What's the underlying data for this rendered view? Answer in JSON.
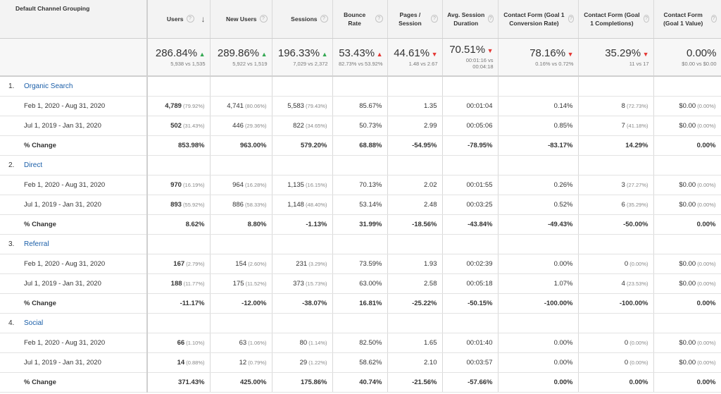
{
  "header": {
    "dimension": "Default Channel Grouping",
    "columns": [
      {
        "label": "Users",
        "sorted": true
      },
      {
        "label": "New Users"
      },
      {
        "label": "Sessions"
      },
      {
        "label": "Bounce Rate"
      },
      {
        "label": "Pages / Session"
      },
      {
        "label": "Avg. Session Duration"
      },
      {
        "label": "Contact Form (Goal 1 Conversion Rate)"
      },
      {
        "label": "Contact Form (Goal 1 Completions)"
      },
      {
        "label": "Contact Form (Goal 1 Value)"
      }
    ],
    "help_glyph": "?",
    "sort_glyph": "↓"
  },
  "totals": [
    {
      "value": "286.84%",
      "trend": "up",
      "sub": "5,938 vs 1,535"
    },
    {
      "value": "289.86%",
      "trend": "up",
      "sub": "5,922 vs 1,519"
    },
    {
      "value": "196.33%",
      "trend": "up",
      "sub": "7,029 vs 2,372"
    },
    {
      "value": "53.43%",
      "trend": "up-bad",
      "sub": "82.73% vs 53.92%"
    },
    {
      "value": "44.61%",
      "trend": "down",
      "sub": "1.48 vs 2.67"
    },
    {
      "value": "70.51%",
      "trend": "down",
      "sub": "00:01:16 vs 00:04:18"
    },
    {
      "value": "78.16%",
      "trend": "down",
      "sub": "0.16% vs 0.72%"
    },
    {
      "value": "35.29%",
      "trend": "down",
      "sub": "11 vs 17"
    },
    {
      "value": "0.00%",
      "trend": "none",
      "sub": "$0.00 vs $0.00"
    }
  ],
  "groups": [
    {
      "num": "1.",
      "name": "Organic Search",
      "rows": [
        {
          "label": "Feb 1, 2020 - Aug 31, 2020",
          "cells": [
            [
              "4,789",
              "(79.92%)"
            ],
            [
              "4,741",
              "(80.06%)"
            ],
            [
              "5,583",
              "(79.43%)"
            ],
            [
              "85.67%",
              ""
            ],
            [
              "1.35",
              ""
            ],
            [
              "00:01:04",
              ""
            ],
            [
              "0.14%",
              ""
            ],
            [
              "8",
              "(72.73%)"
            ],
            [
              "$0.00",
              "(0.00%)"
            ]
          ]
        },
        {
          "label": "Jul 1, 2019 - Jan 31, 2020",
          "cells": [
            [
              "502",
              "(31.43%)"
            ],
            [
              "446",
              "(29.36%)"
            ],
            [
              "822",
              "(34.65%)"
            ],
            [
              "50.73%",
              ""
            ],
            [
              "2.99",
              ""
            ],
            [
              "00:05:06",
              ""
            ],
            [
              "0.85%",
              ""
            ],
            [
              "7",
              "(41.18%)"
            ],
            [
              "$0.00",
              "(0.00%)"
            ]
          ]
        },
        {
          "label": "% Change",
          "change": true,
          "cells": [
            [
              "853.98%",
              ""
            ],
            [
              "963.00%",
              ""
            ],
            [
              "579.20%",
              ""
            ],
            [
              "68.88%",
              ""
            ],
            [
              "-54.95%",
              ""
            ],
            [
              "-78.95%",
              ""
            ],
            [
              "-83.17%",
              ""
            ],
            [
              "14.29%",
              ""
            ],
            [
              "0.00%",
              ""
            ]
          ]
        }
      ]
    },
    {
      "num": "2.",
      "name": "Direct",
      "rows": [
        {
          "label": "Feb 1, 2020 - Aug 31, 2020",
          "cells": [
            [
              "970",
              "(16.19%)"
            ],
            [
              "964",
              "(16.28%)"
            ],
            [
              "1,135",
              "(16.15%)"
            ],
            [
              "70.13%",
              ""
            ],
            [
              "2.02",
              ""
            ],
            [
              "00:01:55",
              ""
            ],
            [
              "0.26%",
              ""
            ],
            [
              "3",
              "(27.27%)"
            ],
            [
              "$0.00",
              "(0.00%)"
            ]
          ]
        },
        {
          "label": "Jul 1, 2019 - Jan 31, 2020",
          "cells": [
            [
              "893",
              "(55.92%)"
            ],
            [
              "886",
              "(58.33%)"
            ],
            [
              "1,148",
              "(48.40%)"
            ],
            [
              "53.14%",
              ""
            ],
            [
              "2.48",
              ""
            ],
            [
              "00:03:25",
              ""
            ],
            [
              "0.52%",
              ""
            ],
            [
              "6",
              "(35.29%)"
            ],
            [
              "$0.00",
              "(0.00%)"
            ]
          ]
        },
        {
          "label": "% Change",
          "change": true,
          "cells": [
            [
              "8.62%",
              ""
            ],
            [
              "8.80%",
              ""
            ],
            [
              "-1.13%",
              ""
            ],
            [
              "31.99%",
              ""
            ],
            [
              "-18.56%",
              ""
            ],
            [
              "-43.84%",
              ""
            ],
            [
              "-49.43%",
              ""
            ],
            [
              "-50.00%",
              ""
            ],
            [
              "0.00%",
              ""
            ]
          ]
        }
      ]
    },
    {
      "num": "3.",
      "name": "Referral",
      "rows": [
        {
          "label": "Feb 1, 2020 - Aug 31, 2020",
          "cells": [
            [
              "167",
              "(2.79%)"
            ],
            [
              "154",
              "(2.60%)"
            ],
            [
              "231",
              "(3.29%)"
            ],
            [
              "73.59%",
              ""
            ],
            [
              "1.93",
              ""
            ],
            [
              "00:02:39",
              ""
            ],
            [
              "0.00%",
              ""
            ],
            [
              "0",
              "(0.00%)"
            ],
            [
              "$0.00",
              "(0.00%)"
            ]
          ]
        },
        {
          "label": "Jul 1, 2019 - Jan 31, 2020",
          "cells": [
            [
              "188",
              "(11.77%)"
            ],
            [
              "175",
              "(11.52%)"
            ],
            [
              "373",
              "(15.73%)"
            ],
            [
              "63.00%",
              ""
            ],
            [
              "2.58",
              ""
            ],
            [
              "00:05:18",
              ""
            ],
            [
              "1.07%",
              ""
            ],
            [
              "4",
              "(23.53%)"
            ],
            [
              "$0.00",
              "(0.00%)"
            ]
          ]
        },
        {
          "label": "% Change",
          "change": true,
          "cells": [
            [
              "-11.17%",
              ""
            ],
            [
              "-12.00%",
              ""
            ],
            [
              "-38.07%",
              ""
            ],
            [
              "16.81%",
              ""
            ],
            [
              "-25.22%",
              ""
            ],
            [
              "-50.15%",
              ""
            ],
            [
              "-100.00%",
              ""
            ],
            [
              "-100.00%",
              ""
            ],
            [
              "0.00%",
              ""
            ]
          ]
        }
      ]
    },
    {
      "num": "4.",
      "name": "Social",
      "rows": [
        {
          "label": "Feb 1, 2020 - Aug 31, 2020",
          "cells": [
            [
              "66",
              "(1.10%)"
            ],
            [
              "63",
              "(1.06%)"
            ],
            [
              "80",
              "(1.14%)"
            ],
            [
              "82.50%",
              ""
            ],
            [
              "1.65",
              ""
            ],
            [
              "00:01:40",
              ""
            ],
            [
              "0.00%",
              ""
            ],
            [
              "0",
              "(0.00%)"
            ],
            [
              "$0.00",
              "(0.00%)"
            ]
          ]
        },
        {
          "label": "Jul 1, 2019 - Jan 31, 2020",
          "cells": [
            [
              "14",
              "(0.88%)"
            ],
            [
              "12",
              "(0.79%)"
            ],
            [
              "29",
              "(1.22%)"
            ],
            [
              "58.62%",
              ""
            ],
            [
              "2.10",
              ""
            ],
            [
              "00:03:57",
              ""
            ],
            [
              "0.00%",
              ""
            ],
            [
              "0",
              "(0.00%)"
            ],
            [
              "$0.00",
              "(0.00%)"
            ]
          ]
        },
        {
          "label": "% Change",
          "change": true,
          "cells": [
            [
              "371.43%",
              ""
            ],
            [
              "425.00%",
              ""
            ],
            [
              "175.86%",
              ""
            ],
            [
              "40.74%",
              ""
            ],
            [
              "-21.56%",
              ""
            ],
            [
              "-57.66%",
              ""
            ],
            [
              "0.00%",
              ""
            ],
            [
              "0.00%",
              ""
            ],
            [
              "0.00%",
              ""
            ]
          ]
        }
      ]
    }
  ]
}
